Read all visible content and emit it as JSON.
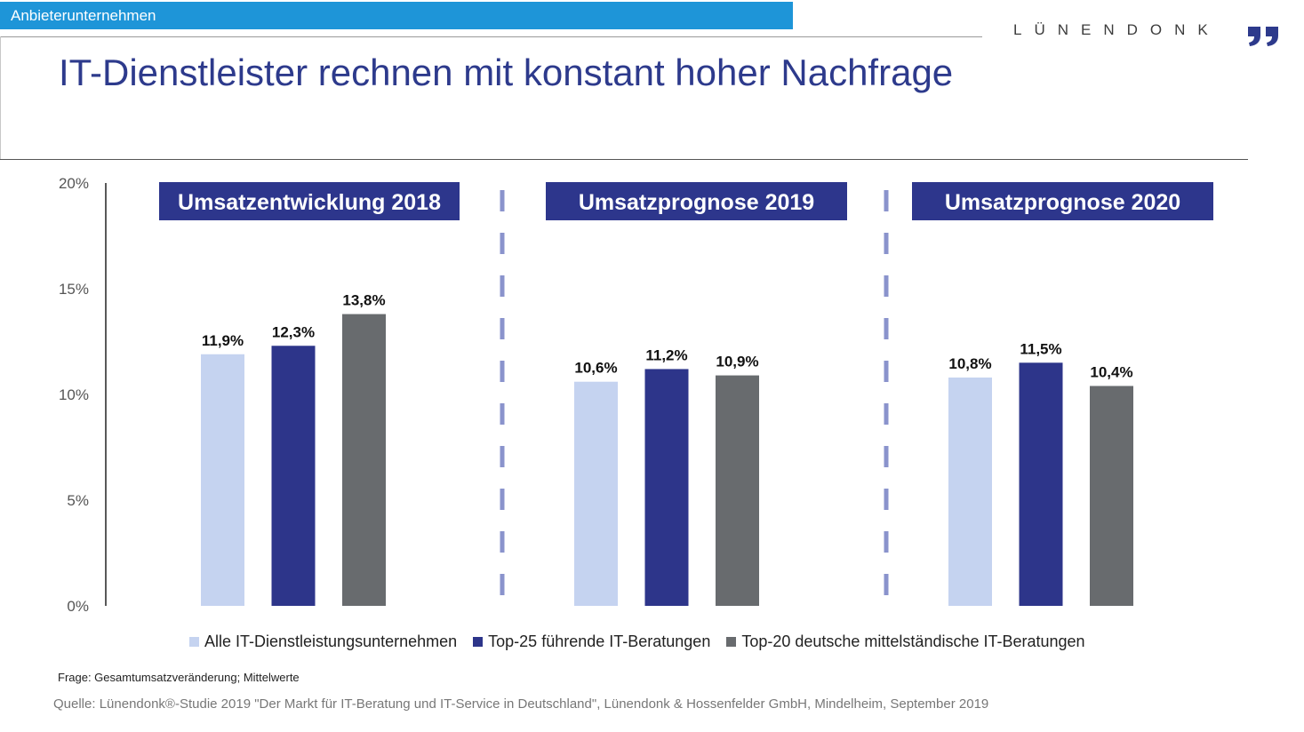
{
  "header": {
    "category": "Anbieterunternehmen",
    "brand": "LÜNENDONK",
    "title": "IT-Dienstleister rechnen mit konstant hoher Nachfrage"
  },
  "colors": {
    "brand_blue": "#1e95d8",
    "title_navy": "#2d3a8c",
    "panel_header": "#2d368c",
    "divider": "#8a93cc"
  },
  "chart_data": {
    "type": "bar",
    "ylim": [
      0,
      20
    ],
    "yticks": [
      0,
      5,
      10,
      15,
      20
    ],
    "ytick_labels": [
      "0%",
      "5%",
      "10%",
      "15%",
      "20%"
    ],
    "grid": false,
    "legend_position": "bottom",
    "groups": [
      {
        "title": "Umsatzentwicklung 2018",
        "values": [
          11.9,
          12.3,
          13.8
        ],
        "labels": [
          "11,9%",
          "12,3%",
          "13,8%"
        ]
      },
      {
        "title": "Umsatzprognose 2019",
        "values": [
          10.6,
          11.2,
          10.9
        ],
        "labels": [
          "10,6%",
          "11,2%",
          "10,9%"
        ]
      },
      {
        "title": "Umsatzprognose 2020",
        "values": [
          10.8,
          11.5,
          10.4
        ],
        "labels": [
          "10,8%",
          "11,5%",
          "10,4%"
        ]
      }
    ],
    "series": [
      {
        "name": "Alle IT-Dienstleistungsunternehmen",
        "color": "#c5d3f0"
      },
      {
        "name": "Top-25 führende IT-Beratungen",
        "color": "#2d358a"
      },
      {
        "name": "Top-20 deutsche mittelständische IT-Beratungen",
        "color": "#686b6e"
      }
    ]
  },
  "footer": {
    "question": "Frage: Gesamtumsatzveränderung; Mittelwerte",
    "source": "Quelle: Lünendonk®-Studie 2019 \"Der Markt für IT-Beratung und IT-Service in Deutschland\", Lünendonk & Hossenfelder GmbH, Mindelheim, September 2019"
  }
}
